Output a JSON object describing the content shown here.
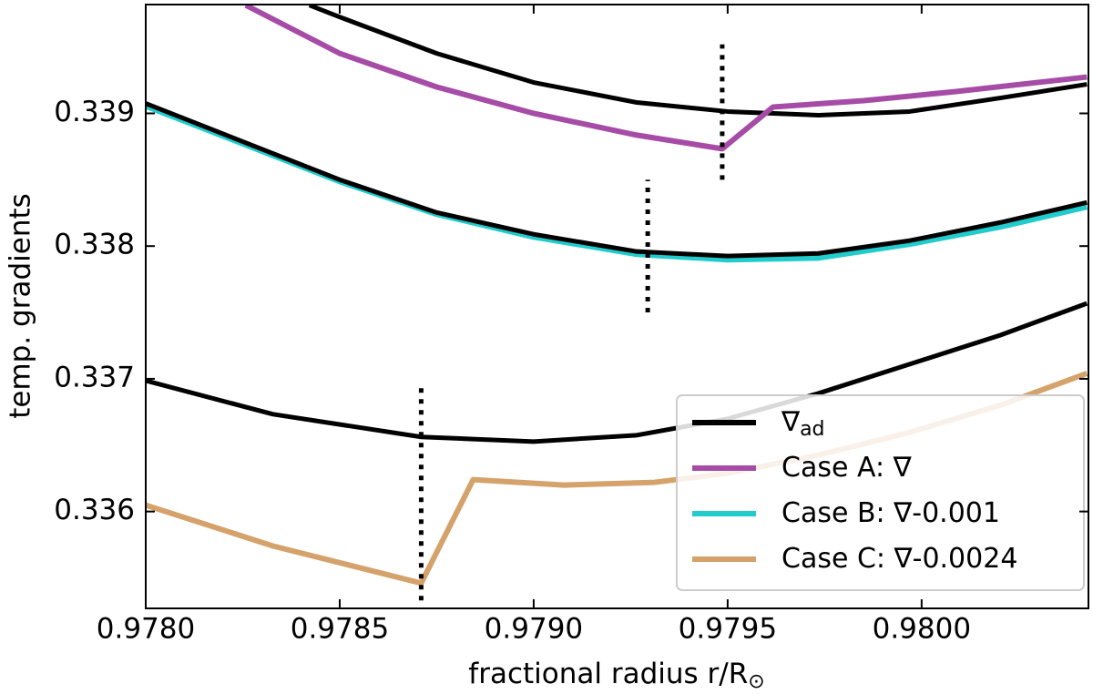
{
  "chart_data": {
    "type": "line",
    "xlabel": "fractional radius r/R",
    "xlabel_subscript": "⊙",
    "ylabel": "temp. gradients",
    "xlim": [
      0.978,
      0.98043
    ],
    "ylim": [
      0.33527,
      0.33982
    ],
    "xticks": [
      {
        "value": 0.978,
        "label": "0.9780"
      },
      {
        "value": 0.9785,
        "label": "0.9785"
      },
      {
        "value": 0.979,
        "label": "0.9790"
      },
      {
        "value": 0.9795,
        "label": "0.9795"
      },
      {
        "value": 0.98,
        "label": "0.9800"
      }
    ],
    "yticks": [
      0.336,
      0.337,
      0.338,
      0.339
    ],
    "legend": "lower right",
    "series": [
      {
        "name": "∇",
        "name_subscript": "ad",
        "color": "#000000",
        "x": [
          0.978422,
          0.9785,
          0.97875,
          0.979,
          0.979266,
          0.9795,
          0.979734,
          0.979969,
          0.980203,
          0.980426
        ],
        "values": [
          0.339815,
          0.339726,
          0.339452,
          0.339233,
          0.339082,
          0.339014,
          0.338986,
          0.339014,
          0.339116,
          0.339219
        ]
      },
      {
        "name": "Case A: ∇",
        "color": "#a64ca6",
        "x": [
          0.978258,
          0.9785,
          0.97875,
          0.979,
          0.979266,
          0.979486,
          0.979617,
          0.979851,
          0.980086,
          0.980426
        ],
        "values": [
          0.339815,
          0.339452,
          0.339199,
          0.339,
          0.338836,
          0.338733,
          0.339048,
          0.339096,
          0.339164,
          0.339274
        ]
      },
      {
        "name": "Case B: ∇-0.001",
        "color": "#22cccc",
        "x": [
          0.978,
          0.9785,
          0.97875,
          0.979,
          0.979266,
          0.9795,
          0.979734,
          0.979969,
          0.980203,
          0.980426
        ],
        "values": [
          0.339055,
          0.338486,
          0.33824,
          0.338068,
          0.337938,
          0.337897,
          0.33791,
          0.338014,
          0.338144,
          0.338295
        ]
      },
      {
        "name": "Case C: ∇-0.0024",
        "color": "#d4a26a",
        "x": [
          0.978,
          0.978328,
          0.97871,
          0.978844,
          0.979078,
          0.979312,
          0.9795,
          0.979734,
          0.979969,
          0.980203,
          0.980426
        ],
        "values": [
          0.336048,
          0.33574,
          0.33546,
          0.33624,
          0.336199,
          0.33622,
          0.336288,
          0.336425,
          0.336596,
          0.336801,
          0.337041
        ]
      },
      {
        "color": "#000000",
        "x": [
          0.978,
          0.9785,
          0.97875,
          0.979,
          0.979266,
          0.9795,
          0.979734,
          0.979969,
          0.980203,
          0.980426
        ],
        "values": [
          0.339075,
          0.3385,
          0.338253,
          0.338089,
          0.337959,
          0.337925,
          0.337945,
          0.338041,
          0.338178,
          0.338329
        ]
      },
      {
        "color": "#000000",
        "x": [
          0.978,
          0.978328,
          0.97871,
          0.979,
          0.979266,
          0.9795,
          0.979734,
          0.979969,
          0.980203,
          0.980426
        ],
        "values": [
          0.336986,
          0.336733,
          0.336562,
          0.336527,
          0.336575,
          0.336699,
          0.33689,
          0.33711,
          0.337329,
          0.337568
        ]
      }
    ],
    "vlines": [
      {
        "x": 0.979486,
        "y": [
          0.3385,
          0.33952
        ]
      },
      {
        "x": 0.979294,
        "y": [
          0.3375,
          0.3385
        ]
      },
      {
        "x": 0.97871,
        "y": [
          0.33533,
          0.33697
        ]
      }
    ]
  }
}
